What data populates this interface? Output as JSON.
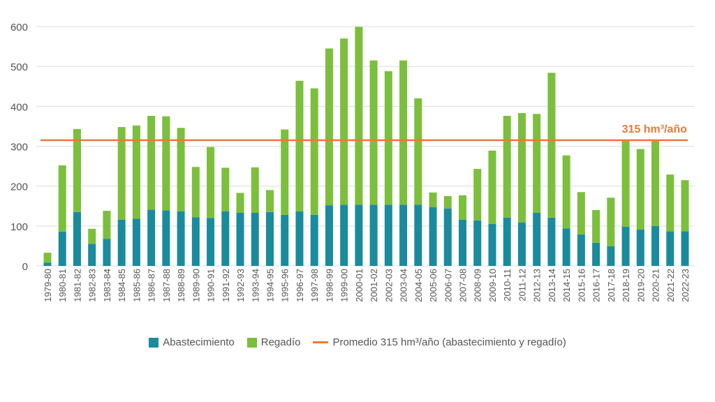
{
  "chart_data": {
    "type": "bar",
    "stacked": true,
    "title": "",
    "xlabel": "",
    "ylabel": "",
    "ylim": [
      0,
      600
    ],
    "yticks": [
      0,
      100,
      200,
      300,
      400,
      500,
      600
    ],
    "grid": true,
    "legend_position": "bottom",
    "categories": [
      "1979-80",
      "1980-81",
      "1981-82",
      "1982-83",
      "1983-84",
      "1984-85",
      "1985-86",
      "1986-87",
      "1987-88",
      "1988-89",
      "1989-90",
      "1990-91",
      "1991-92",
      "1992-93",
      "1993-94",
      "1994-95",
      "1995-96",
      "1996-97",
      "1997-98",
      "1998-99",
      "1999-00",
      "2000-01",
      "2001-02",
      "2002-03",
      "2003-04",
      "2004-05",
      "2005-06",
      "2006-07",
      "2007-08",
      "2008-09",
      "2009-10",
      "2010-11",
      "2011-12",
      "2012-13",
      "2013-14",
      "2014-15",
      "2015-16",
      "2016-17",
      "2017-18",
      "2018-19",
      "2019-20",
      "2020-21",
      "2021-22",
      "2022-23"
    ],
    "series": [
      {
        "name": "Abastecimiento",
        "color": "#1a8b9d",
        "values": [
          8,
          86,
          135,
          55,
          68,
          116,
          118,
          141,
          139,
          137,
          122,
          120,
          137,
          133,
          133,
          135,
          128,
          137,
          128,
          152,
          153,
          153,
          153,
          153,
          153,
          153,
          147,
          144,
          116,
          114,
          105,
          121,
          109,
          133,
          121,
          94,
          79,
          58,
          49,
          98,
          91,
          100,
          87,
          87
        ]
      },
      {
        "name": "Regadío",
        "color": "#7cbf3c",
        "values": [
          25,
          166,
          208,
          38,
          70,
          232,
          234,
          235,
          236,
          209,
          126,
          178,
          109,
          50,
          114,
          55,
          214,
          327,
          317,
          393,
          417,
          446,
          362,
          335,
          362,
          267,
          37,
          31,
          61,
          129,
          184,
          255,
          274,
          248,
          363,
          183,
          106,
          82,
          122,
          215,
          202,
          213,
          142,
          128
        ]
      }
    ],
    "reference_line": {
      "value": 315,
      "label": "315 hm³/año",
      "legend": "Promedio 315 hm³/año (abastecimiento y regadío)",
      "color": "#e87a3a"
    }
  }
}
